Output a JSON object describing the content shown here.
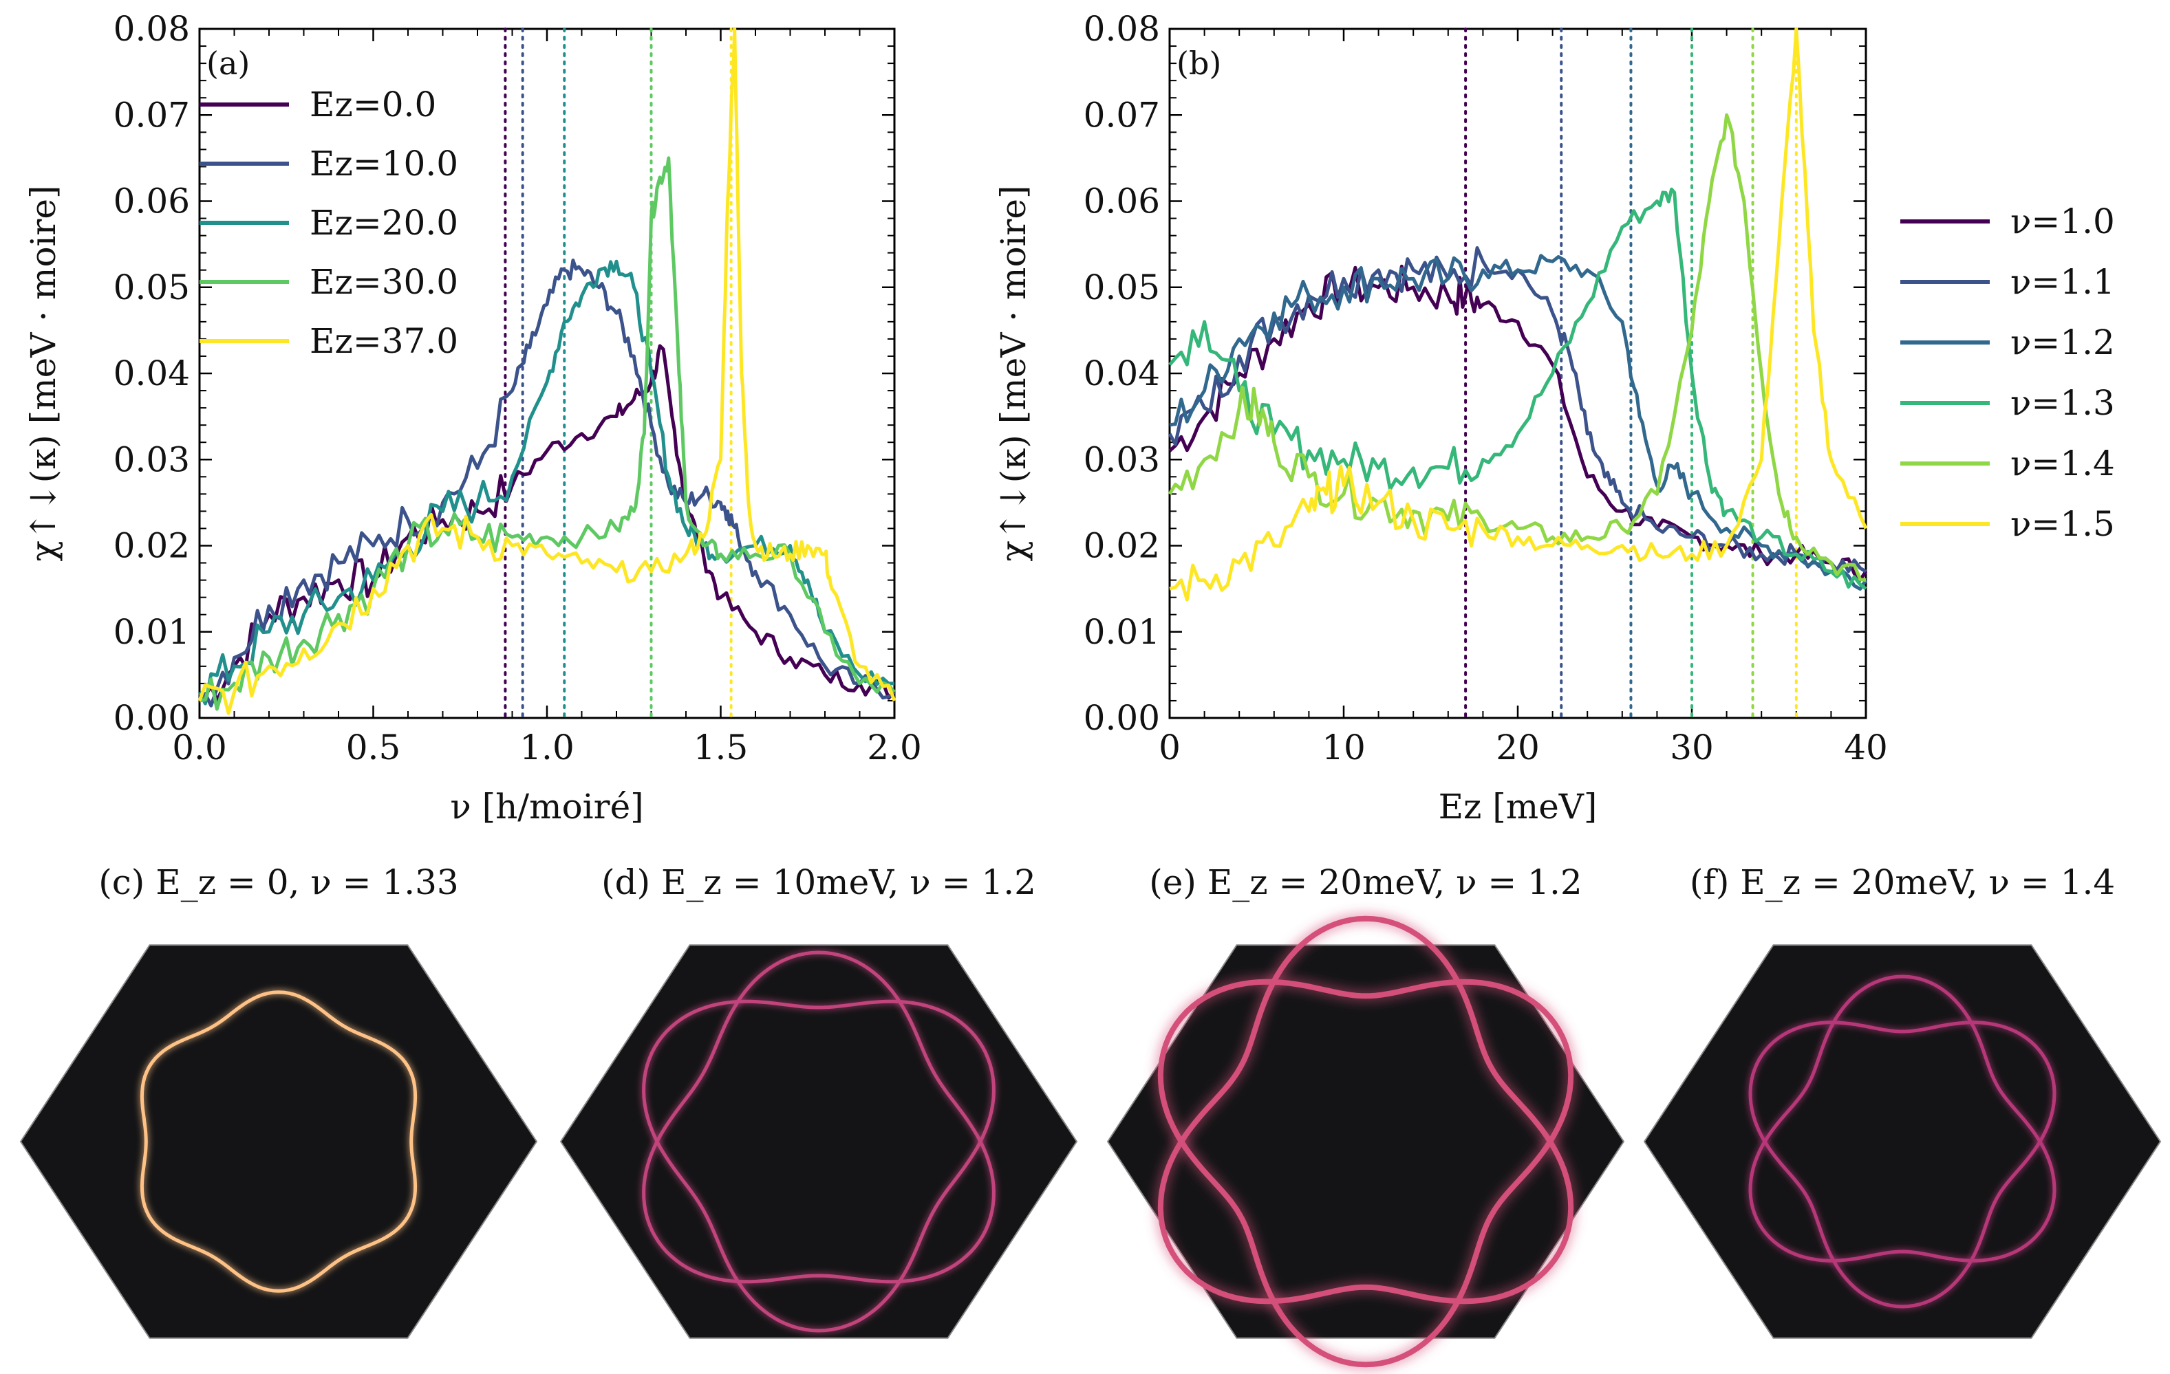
{
  "chart_data": [
    {
      "type": "line",
      "panel": "(a)",
      "xlabel": "ν [h/moiré]",
      "ylabel": "χ↑↓(κ) [meV · moire]",
      "xlim": [
        0.0,
        2.0
      ],
      "ylim": [
        0.0,
        0.08
      ],
      "xticks": [
        "0.0",
        "0.5",
        "1.0",
        "1.5",
        "2.0"
      ],
      "yticks": [
        "0.00",
        "0.01",
        "0.02",
        "0.03",
        "0.04",
        "0.05",
        "0.06",
        "0.07",
        "0.08"
      ],
      "legend_position": "top-left",
      "series": [
        {
          "name": "Ez=0.0",
          "color": "#440154",
          "x": [
            0.0,
            0.1,
            0.2,
            0.3,
            0.4,
            0.5,
            0.6,
            0.7,
            0.8,
            0.9,
            1.0,
            1.1,
            1.2,
            1.25,
            1.3,
            1.33,
            1.36,
            1.4,
            1.45,
            1.5,
            1.6,
            1.7,
            1.8,
            1.9,
            2.0
          ],
          "y": [
            0.002,
            0.006,
            0.012,
            0.014,
            0.016,
            0.016,
            0.021,
            0.023,
            0.024,
            0.027,
            0.031,
            0.033,
            0.035,
            0.037,
            0.039,
            0.043,
            0.035,
            0.025,
            0.019,
            0.014,
            0.01,
            0.007,
            0.005,
            0.004,
            0.003
          ],
          "marker_x": 0.88
        },
        {
          "name": "Ez=10.0",
          "color": "#3b528b",
          "x": [
            0.0,
            0.1,
            0.2,
            0.3,
            0.4,
            0.5,
            0.6,
            0.7,
            0.8,
            0.9,
            0.95,
            1.0,
            1.05,
            1.1,
            1.15,
            1.2,
            1.25,
            1.3,
            1.35,
            1.4,
            1.45,
            1.5,
            1.52,
            1.55,
            1.6,
            1.7,
            1.8,
            1.9,
            2.0
          ],
          "y": [
            0.002,
            0.007,
            0.013,
            0.016,
            0.018,
            0.02,
            0.023,
            0.025,
            0.029,
            0.038,
            0.043,
            0.048,
            0.052,
            0.052,
            0.05,
            0.047,
            0.042,
            0.034,
            0.027,
            0.025,
            0.026,
            0.025,
            0.024,
            0.021,
            0.017,
            0.012,
            0.006,
            0.004,
            0.003
          ],
          "marker_x": 0.93
        },
        {
          "name": "Ez=20.0",
          "color": "#21908d",
          "x": [
            0.0,
            0.1,
            0.2,
            0.3,
            0.4,
            0.5,
            0.6,
            0.7,
            0.8,
            0.9,
            1.0,
            1.05,
            1.1,
            1.15,
            1.2,
            1.25,
            1.3,
            1.35,
            1.4,
            1.45,
            1.5,
            1.6,
            1.7,
            1.75,
            1.8,
            1.9,
            2.0
          ],
          "y": [
            0.003,
            0.006,
            0.01,
            0.012,
            0.014,
            0.016,
            0.02,
            0.024,
            0.025,
            0.028,
            0.039,
            0.046,
            0.049,
            0.052,
            0.053,
            0.05,
            0.04,
            0.028,
            0.022,
            0.02,
            0.019,
            0.02,
            0.02,
            0.016,
            0.01,
            0.005,
            0.004
          ],
          "marker_x": 1.05
        },
        {
          "name": "Ez=30.0",
          "color": "#5ec962",
          "x": [
            0.0,
            0.1,
            0.2,
            0.3,
            0.4,
            0.5,
            0.6,
            0.7,
            0.8,
            0.9,
            1.0,
            1.1,
            1.2,
            1.25,
            1.28,
            1.3,
            1.32,
            1.35,
            1.38,
            1.4,
            1.45,
            1.5,
            1.6,
            1.7,
            1.8,
            1.9,
            2.0
          ],
          "y": [
            0.002,
            0.004,
            0.007,
            0.009,
            0.012,
            0.015,
            0.02,
            0.022,
            0.021,
            0.021,
            0.021,
            0.021,
            0.022,
            0.024,
            0.033,
            0.058,
            0.062,
            0.065,
            0.04,
            0.025,
            0.02,
            0.019,
            0.019,
            0.019,
            0.01,
            0.004,
            0.003
          ],
          "marker_x": 1.3
        },
        {
          "name": "Ez=37.0",
          "color": "#fde725",
          "x": [
            0.0,
            0.1,
            0.2,
            0.3,
            0.4,
            0.5,
            0.6,
            0.7,
            0.8,
            0.9,
            1.0,
            1.1,
            1.2,
            1.3,
            1.4,
            1.45,
            1.5,
            1.52,
            1.54,
            1.56,
            1.58,
            1.6,
            1.65,
            1.7,
            1.75,
            1.8,
            1.82,
            1.9,
            2.0
          ],
          "y": [
            0.002,
            0.003,
            0.006,
            0.008,
            0.011,
            0.015,
            0.02,
            0.022,
            0.021,
            0.02,
            0.019,
            0.018,
            0.017,
            0.017,
            0.019,
            0.021,
            0.03,
            0.06,
            0.08,
            0.04,
            0.025,
            0.02,
            0.019,
            0.019,
            0.02,
            0.019,
            0.015,
            0.006,
            0.002
          ],
          "marker_x": 1.53
        }
      ]
    },
    {
      "type": "line",
      "panel": "(b)",
      "xlabel": "Ez [meV]",
      "ylabel": "χ↑↓(κ) [meV · moire]",
      "xlim": [
        0,
        40
      ],
      "ylim": [
        0.0,
        0.08
      ],
      "xticks": [
        "0",
        "10",
        "20",
        "30",
        "40"
      ],
      "yticks": [
        "0.00",
        "0.01",
        "0.02",
        "0.03",
        "0.04",
        "0.05",
        "0.06",
        "0.07",
        "0.08"
      ],
      "legend_position": "right outside",
      "series": [
        {
          "name": "ν=1.0",
          "color": "#440154",
          "x": [
            0,
            2,
            4,
            6,
            8,
            10,
            12,
            14,
            16,
            17,
            18,
            20,
            22,
            24,
            26,
            28,
            30,
            32,
            34,
            36,
            38,
            40
          ],
          "y": [
            0.031,
            0.035,
            0.04,
            0.044,
            0.048,
            0.05,
            0.05,
            0.05,
            0.049,
            0.049,
            0.048,
            0.046,
            0.041,
            0.028,
            0.024,
            0.022,
            0.021,
            0.02,
            0.019,
            0.019,
            0.018,
            0.017
          ],
          "marker_x": 17
        },
        {
          "name": "ν=1.1",
          "color": "#3b528b",
          "x": [
            0,
            2,
            4,
            6,
            8,
            10,
            12,
            14,
            16,
            18,
            20,
            22,
            23,
            24,
            25,
            26,
            28,
            30,
            32,
            34,
            36,
            38,
            40
          ],
          "y": [
            0.033,
            0.036,
            0.042,
            0.046,
            0.049,
            0.051,
            0.052,
            0.052,
            0.051,
            0.053,
            0.052,
            0.047,
            0.042,
            0.033,
            0.028,
            0.025,
            0.022,
            0.021,
            0.02,
            0.019,
            0.019,
            0.018,
            0.017
          ],
          "marker_x": 22.5
        },
        {
          "name": "ν=1.2",
          "color": "#31688e",
          "x": [
            0,
            2,
            4,
            6,
            8,
            10,
            12,
            14,
            16,
            18,
            20,
            22,
            24,
            26,
            27,
            28,
            29,
            30,
            32,
            34,
            36,
            38,
            40
          ],
          "y": [
            0.034,
            0.038,
            0.044,
            0.047,
            0.049,
            0.05,
            0.051,
            0.051,
            0.051,
            0.052,
            0.052,
            0.053,
            0.052,
            0.046,
            0.035,
            0.027,
            0.029,
            0.026,
            0.022,
            0.02,
            0.019,
            0.017,
            0.016
          ],
          "marker_x": 26.5
        },
        {
          "name": "ν=1.3",
          "color": "#35b779",
          "x": [
            0,
            2,
            4,
            6,
            8,
            10,
            12,
            14,
            16,
            18,
            20,
            22,
            24,
            26,
            28,
            29,
            30,
            31,
            32,
            34,
            36,
            38,
            40
          ],
          "y": [
            0.041,
            0.046,
            0.038,
            0.033,
            0.031,
            0.03,
            0.029,
            0.029,
            0.029,
            0.03,
            0.033,
            0.04,
            0.048,
            0.057,
            0.06,
            0.061,
            0.04,
            0.028,
            0.024,
            0.021,
            0.019,
            0.017,
            0.015
          ],
          "marker_x": 30
        },
        {
          "name": "ν=1.4",
          "color": "#8fd744",
          "x": [
            0,
            2,
            4,
            5,
            6,
            8,
            10,
            12,
            14,
            16,
            18,
            20,
            22,
            24,
            26,
            28,
            30,
            31,
            32,
            33,
            34,
            35,
            36,
            38,
            40
          ],
          "y": [
            0.026,
            0.03,
            0.036,
            0.036,
            0.032,
            0.028,
            0.026,
            0.025,
            0.024,
            0.023,
            0.023,
            0.022,
            0.021,
            0.021,
            0.022,
            0.026,
            0.045,
            0.06,
            0.07,
            0.06,
            0.04,
            0.026,
            0.021,
            0.018,
            0.016
          ],
          "marker_x": 33.5
        },
        {
          "name": "ν=1.5",
          "color": "#fde725",
          "x": [
            0,
            2,
            4,
            6,
            8,
            9,
            10,
            12,
            14,
            16,
            18,
            20,
            22,
            24,
            26,
            28,
            30,
            32,
            34,
            35,
            36,
            37,
            38,
            40
          ],
          "y": [
            0.015,
            0.016,
            0.018,
            0.02,
            0.024,
            0.026,
            0.027,
            0.025,
            0.023,
            0.022,
            0.022,
            0.021,
            0.02,
            0.02,
            0.02,
            0.019,
            0.019,
            0.02,
            0.03,
            0.055,
            0.08,
            0.045,
            0.03,
            0.022
          ],
          "marker_x": 36
        }
      ]
    }
  ],
  "top": {
    "panel_a_label": "(a)",
    "panel_b_label": "(b)"
  },
  "insets": [
    {
      "title": "(c) E_z = 0, ν = 1.33",
      "colormap": "magma",
      "contour": "single-hexagonal"
    },
    {
      "title": "(d) E_z = 10meV, ν = 1.2",
      "colormap": "magma",
      "contour": "double-interlocked"
    },
    {
      "title": "(e) E_z = 20meV, ν = 1.2",
      "colormap": "magma",
      "contour": "double-interlocked-large"
    },
    {
      "title": "(f) E_z = 20meV, ν = 1.4",
      "colormap": "magma",
      "contour": "double-interlocked-small"
    }
  ]
}
